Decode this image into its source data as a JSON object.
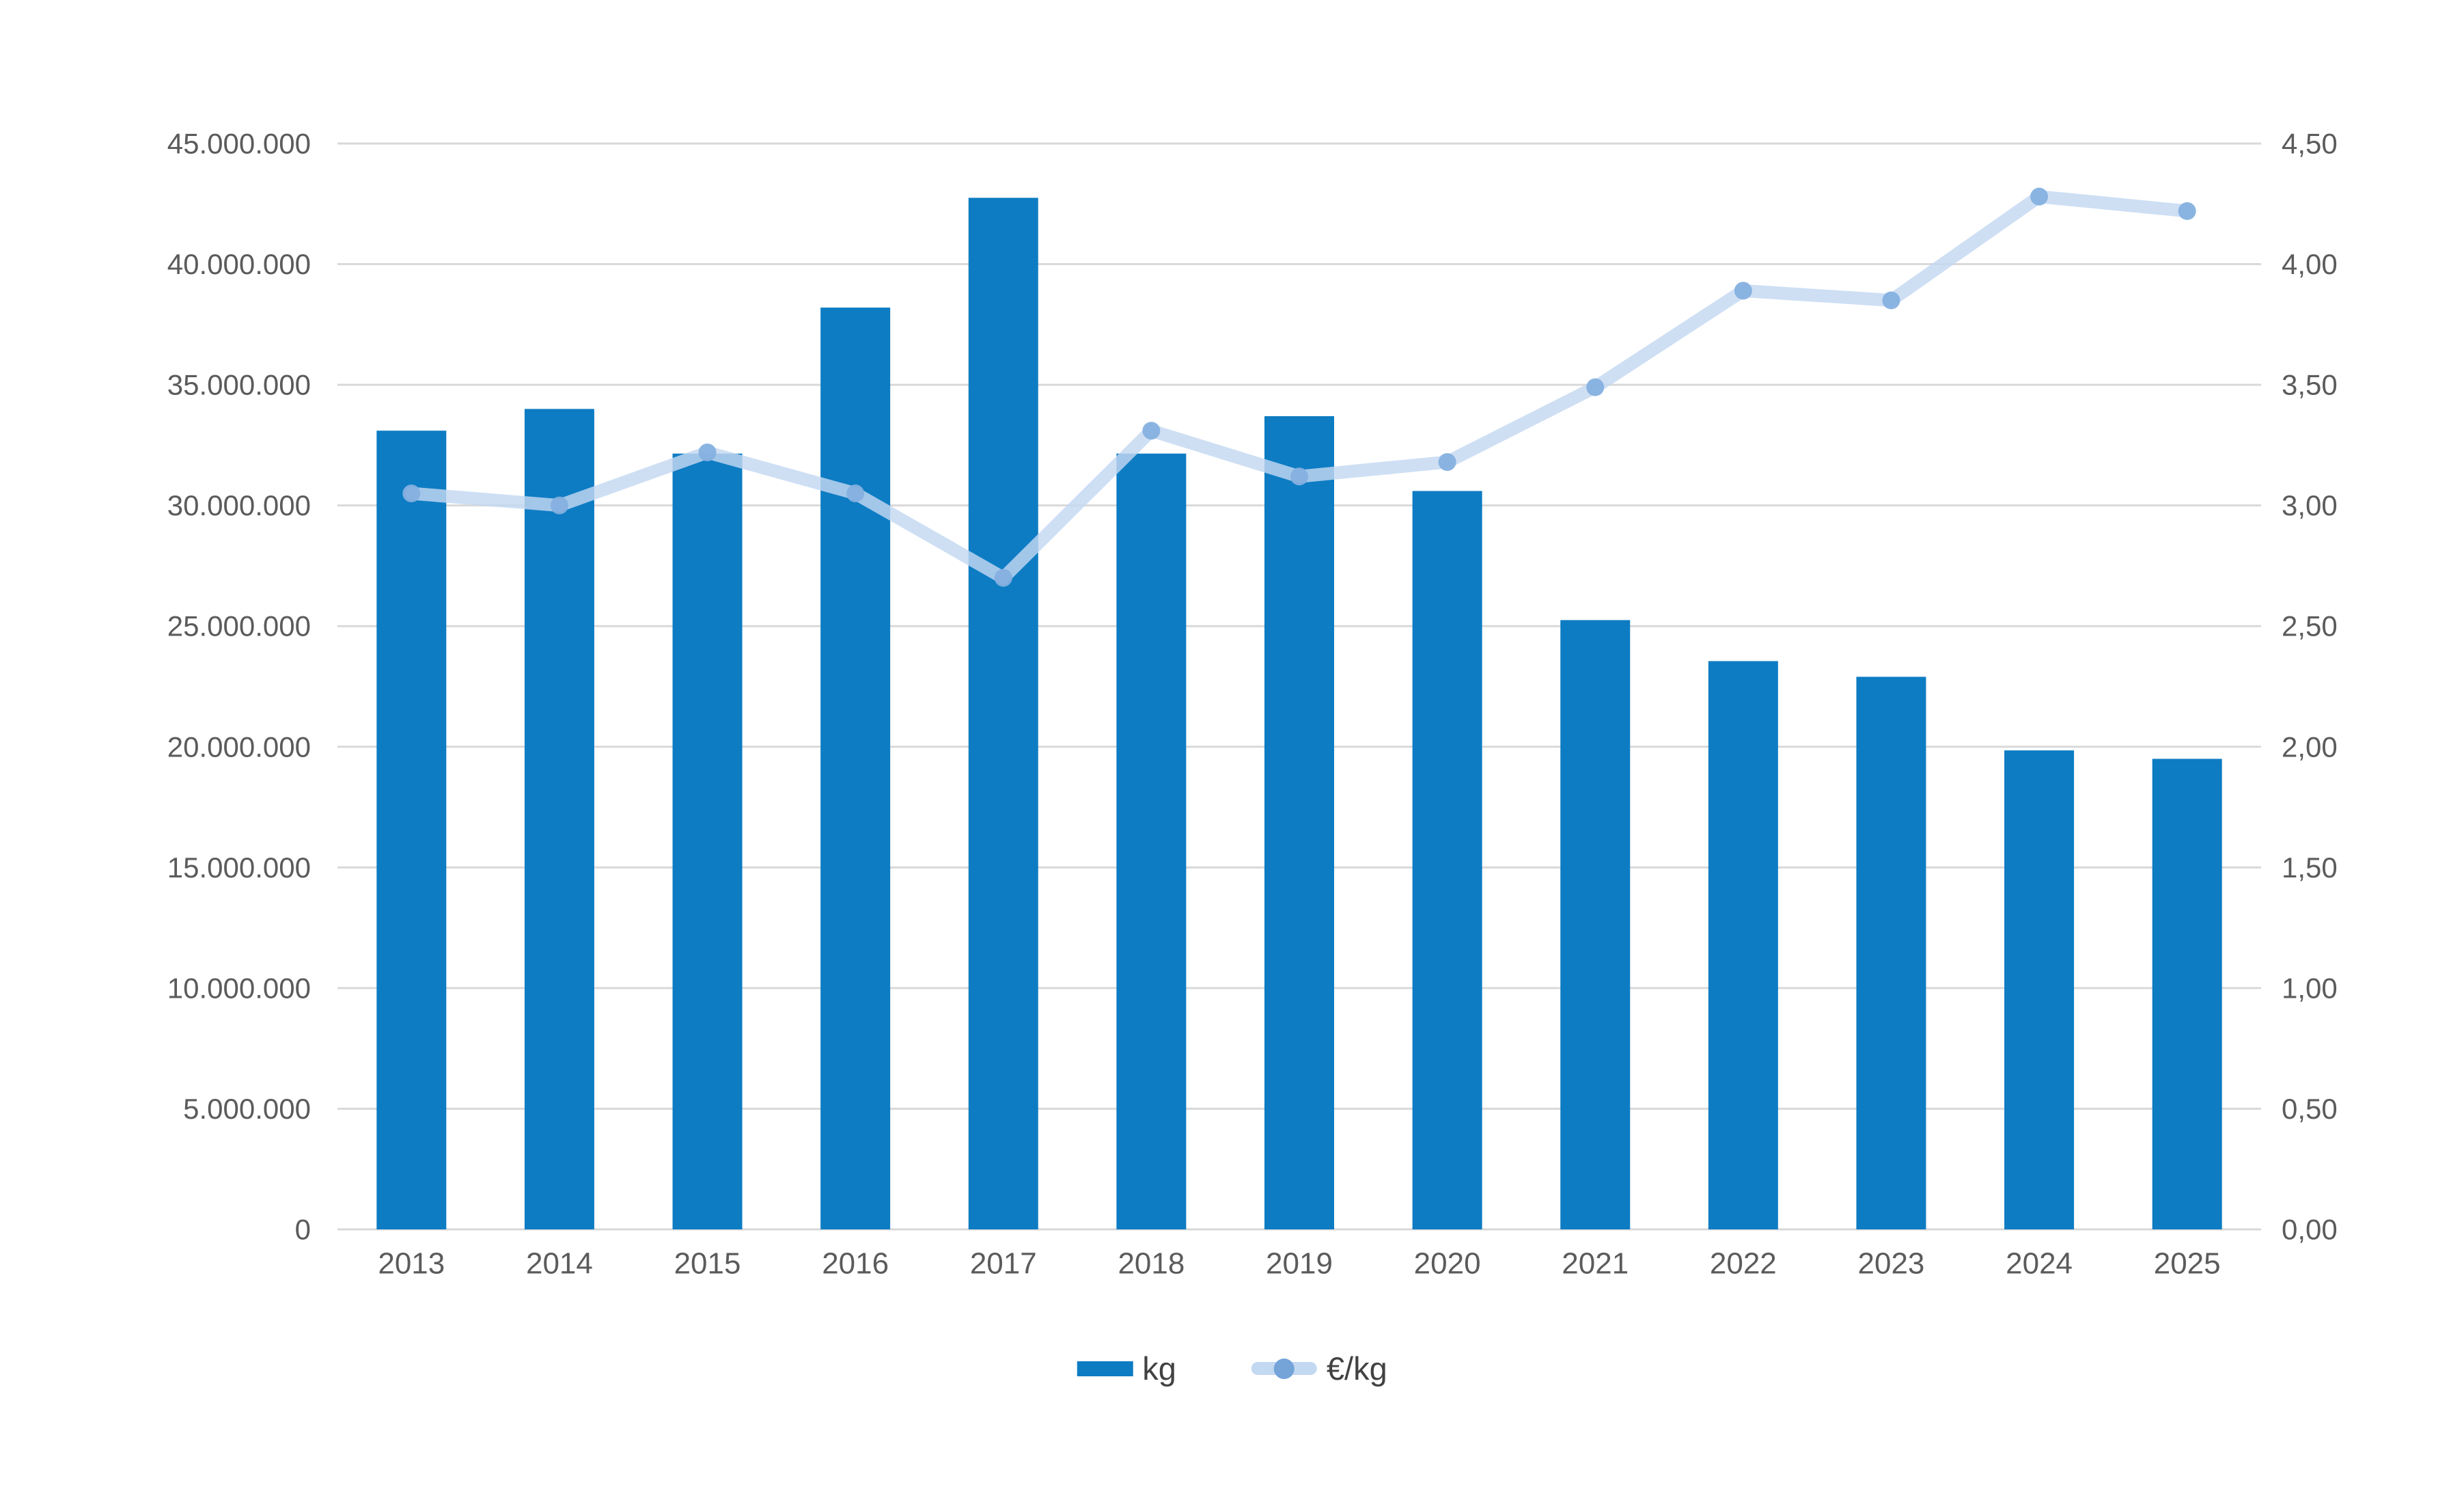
{
  "chart_data": {
    "type": "bar+line",
    "title": "",
    "categories": [
      "2013",
      "2014",
      "2015",
      "2016",
      "2017",
      "2018",
      "2019",
      "2020",
      "2021",
      "2022",
      "2023",
      "2024",
      "2025"
    ],
    "series": [
      {
        "name": "kg",
        "type": "bar",
        "axis": "left",
        "values": [
          33100000,
          34000000,
          32150000,
          38200000,
          42750000,
          32150000,
          33700000,
          30600000,
          25250000,
          23550000,
          22900000,
          19850000,
          19500000
        ]
      },
      {
        "name": "€/kg",
        "type": "line",
        "axis": "right",
        "values": [
          3.05,
          3.0,
          3.22,
          3.05,
          2.7,
          3.31,
          3.12,
          3.18,
          3.49,
          3.89,
          3.85,
          4.28,
          4.22
        ]
      }
    ],
    "left_axis": {
      "min": 0,
      "max": 45000000,
      "step": 5000000,
      "tick_labels": [
        "0",
        "5.000.000",
        "10.000.000",
        "15.000.000",
        "20.000.000",
        "25.000.000",
        "30.000.000",
        "35.000.000",
        "40.000.000",
        "45.000.000"
      ]
    },
    "right_axis": {
      "min": 0,
      "max": 4.5,
      "step": 0.5,
      "tick_labels": [
        "0,00",
        "0,50",
        "1,00",
        "1,50",
        "2,00",
        "2,50",
        "3,00",
        "3,50",
        "4,00",
        "4,50"
      ]
    },
    "grid": true,
    "legend_position": "bottom"
  },
  "legend": {
    "items": [
      {
        "label": "kg"
      },
      {
        "label": "€/kg"
      }
    ]
  },
  "colors": {
    "bar": "#0d7cc3",
    "line": "#c3d8f1",
    "point": "#85b0df",
    "legend_dot": "#74a4d8",
    "grid": "#d9d9d9",
    "tick_text": "#5b5b5b",
    "legend_text": "#424242",
    "background": "#ffffff"
  }
}
